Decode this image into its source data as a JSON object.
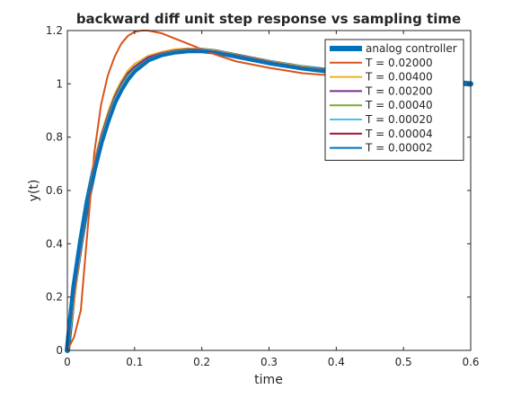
{
  "chart_data": {
    "type": "line",
    "title": "backward diff unit step response vs sampling time",
    "xlabel": "time",
    "ylabel": "y(t)",
    "xlim": [
      0,
      0.6
    ],
    "ylim": [
      0,
      1.2
    ],
    "xticks": [
      0,
      0.1,
      0.2,
      0.3,
      0.4,
      0.5,
      0.6
    ],
    "xtick_labels": [
      "0",
      "0.1",
      "0.2",
      "0.3",
      "0.4",
      "0.5",
      "0.6"
    ],
    "yticks": [
      0,
      0.2,
      0.4,
      0.6,
      0.8,
      1.0,
      1.2
    ],
    "ytick_labels": [
      "0",
      "0.2",
      "0.4",
      "0.6",
      "0.8",
      "1",
      "1.2"
    ],
    "grid": false,
    "legend_position": "top-right",
    "series": [
      {
        "name": "analog controller",
        "color": "#0072BD",
        "style": "thick",
        "x": [
          0,
          0.01,
          0.02,
          0.03,
          0.04,
          0.05,
          0.06,
          0.07,
          0.08,
          0.09,
          0.1,
          0.12,
          0.14,
          0.16,
          0.18,
          0.2,
          0.22,
          0.25,
          0.3,
          0.35,
          0.4,
          0.45,
          0.5,
          0.55,
          0.6
        ],
        "y": [
          0,
          0.24,
          0.41,
          0.56,
          0.68,
          0.78,
          0.86,
          0.93,
          0.98,
          1.02,
          1.05,
          1.09,
          1.11,
          1.12,
          1.125,
          1.125,
          1.12,
          1.105,
          1.08,
          1.06,
          1.045,
          1.03,
          1.02,
          1.01,
          1.0
        ]
      },
      {
        "name": "T = 0.02000",
        "color": "#D95319",
        "style": "normal",
        "x": [
          0,
          0.01,
          0.02,
          0.03,
          0.04,
          0.05,
          0.06,
          0.07,
          0.08,
          0.09,
          0.1,
          0.11,
          0.12,
          0.13,
          0.14,
          0.16,
          0.18,
          0.2,
          0.22,
          0.25,
          0.3,
          0.35,
          0.4,
          0.45,
          0.5,
          0.55,
          0.6
        ],
        "y": [
          0,
          0.05,
          0.15,
          0.45,
          0.74,
          0.92,
          1.03,
          1.1,
          1.15,
          1.18,
          1.195,
          1.2,
          1.2,
          1.195,
          1.19,
          1.17,
          1.15,
          1.13,
          1.11,
          1.085,
          1.06,
          1.04,
          1.03,
          1.02,
          1.01,
          1.005,
          1.0
        ]
      },
      {
        "name": "T = 0.00400",
        "color": "#EDB120",
        "style": "normal",
        "x": [
          0,
          0.01,
          0.02,
          0.03,
          0.04,
          0.05,
          0.06,
          0.07,
          0.08,
          0.09,
          0.1,
          0.12,
          0.14,
          0.16,
          0.18,
          0.2,
          0.22,
          0.25,
          0.3,
          0.35,
          0.4,
          0.45,
          0.5,
          0.55,
          0.6
        ],
        "y": [
          0,
          0.18,
          0.39,
          0.56,
          0.7,
          0.81,
          0.89,
          0.96,
          1.01,
          1.05,
          1.075,
          1.105,
          1.12,
          1.13,
          1.133,
          1.13,
          1.125,
          1.11,
          1.085,
          1.065,
          1.045,
          1.03,
          1.02,
          1.01,
          1.0
        ]
      },
      {
        "name": "T = 0.00200",
        "color": "#7E2F8E",
        "style": "normal",
        "x": [
          0,
          0.01,
          0.02,
          0.03,
          0.04,
          0.05,
          0.06,
          0.07,
          0.08,
          0.09,
          0.1,
          0.12,
          0.14,
          0.16,
          0.18,
          0.2,
          0.22,
          0.25,
          0.3,
          0.35,
          0.4,
          0.45,
          0.5,
          0.55,
          0.6
        ],
        "y": [
          0,
          0.21,
          0.4,
          0.56,
          0.69,
          0.8,
          0.88,
          0.95,
          1.0,
          1.04,
          1.065,
          1.1,
          1.115,
          1.125,
          1.13,
          1.128,
          1.122,
          1.108,
          1.083,
          1.062,
          1.045,
          1.03,
          1.02,
          1.01,
          1.0
        ]
      },
      {
        "name": "T = 0.00040",
        "color": "#77AC30",
        "style": "normal",
        "x": [
          0,
          0.01,
          0.02,
          0.03,
          0.04,
          0.05,
          0.06,
          0.07,
          0.08,
          0.09,
          0.1,
          0.12,
          0.14,
          0.16,
          0.18,
          0.2,
          0.22,
          0.25,
          0.3,
          0.35,
          0.4,
          0.45,
          0.5,
          0.55,
          0.6
        ],
        "y": [
          0,
          0.23,
          0.41,
          0.56,
          0.68,
          0.79,
          0.87,
          0.94,
          0.99,
          1.03,
          1.055,
          1.092,
          1.112,
          1.122,
          1.127,
          1.126,
          1.121,
          1.106,
          1.081,
          1.061,
          1.045,
          1.03,
          1.02,
          1.01,
          1.0
        ]
      },
      {
        "name": "T = 0.00020",
        "color": "#4DBEEE",
        "style": "normal",
        "x": [
          0,
          0.01,
          0.02,
          0.03,
          0.04,
          0.05,
          0.06,
          0.07,
          0.08,
          0.09,
          0.1,
          0.12,
          0.14,
          0.16,
          0.18,
          0.2,
          0.22,
          0.25,
          0.3,
          0.35,
          0.4,
          0.45,
          0.5,
          0.55,
          0.6
        ],
        "y": [
          0,
          0.235,
          0.41,
          0.56,
          0.68,
          0.785,
          0.865,
          0.935,
          0.985,
          1.025,
          1.052,
          1.09,
          1.111,
          1.121,
          1.126,
          1.126,
          1.12,
          1.105,
          1.08,
          1.06,
          1.045,
          1.03,
          1.02,
          1.01,
          1.0
        ]
      },
      {
        "name": "T = 0.00004",
        "color": "#A2142F",
        "style": "normal",
        "x": [
          0,
          0.01,
          0.02,
          0.03,
          0.04,
          0.05,
          0.06,
          0.07,
          0.08,
          0.09,
          0.1,
          0.12,
          0.14,
          0.16,
          0.18,
          0.2,
          0.22,
          0.25,
          0.3,
          0.35,
          0.4,
          0.45,
          0.5,
          0.55,
          0.6
        ],
        "y": [
          0,
          0.24,
          0.41,
          0.56,
          0.68,
          0.78,
          0.86,
          0.93,
          0.98,
          1.02,
          1.05,
          1.09,
          1.11,
          1.12,
          1.125,
          1.125,
          1.12,
          1.105,
          1.08,
          1.06,
          1.045,
          1.03,
          1.02,
          1.01,
          1.0
        ]
      },
      {
        "name": "T = 0.00002",
        "color": "#0072BD",
        "style": "normal",
        "x": [
          0,
          0.01,
          0.02,
          0.03,
          0.04,
          0.05,
          0.06,
          0.07,
          0.08,
          0.09,
          0.1,
          0.12,
          0.14,
          0.16,
          0.18,
          0.2,
          0.22,
          0.25,
          0.3,
          0.35,
          0.4,
          0.45,
          0.5,
          0.55,
          0.6
        ],
        "y": [
          0,
          0.24,
          0.41,
          0.56,
          0.68,
          0.78,
          0.86,
          0.93,
          0.98,
          1.02,
          1.05,
          1.09,
          1.11,
          1.12,
          1.125,
          1.125,
          1.12,
          1.105,
          1.08,
          1.06,
          1.045,
          1.03,
          1.02,
          1.01,
          1.0
        ]
      }
    ]
  }
}
